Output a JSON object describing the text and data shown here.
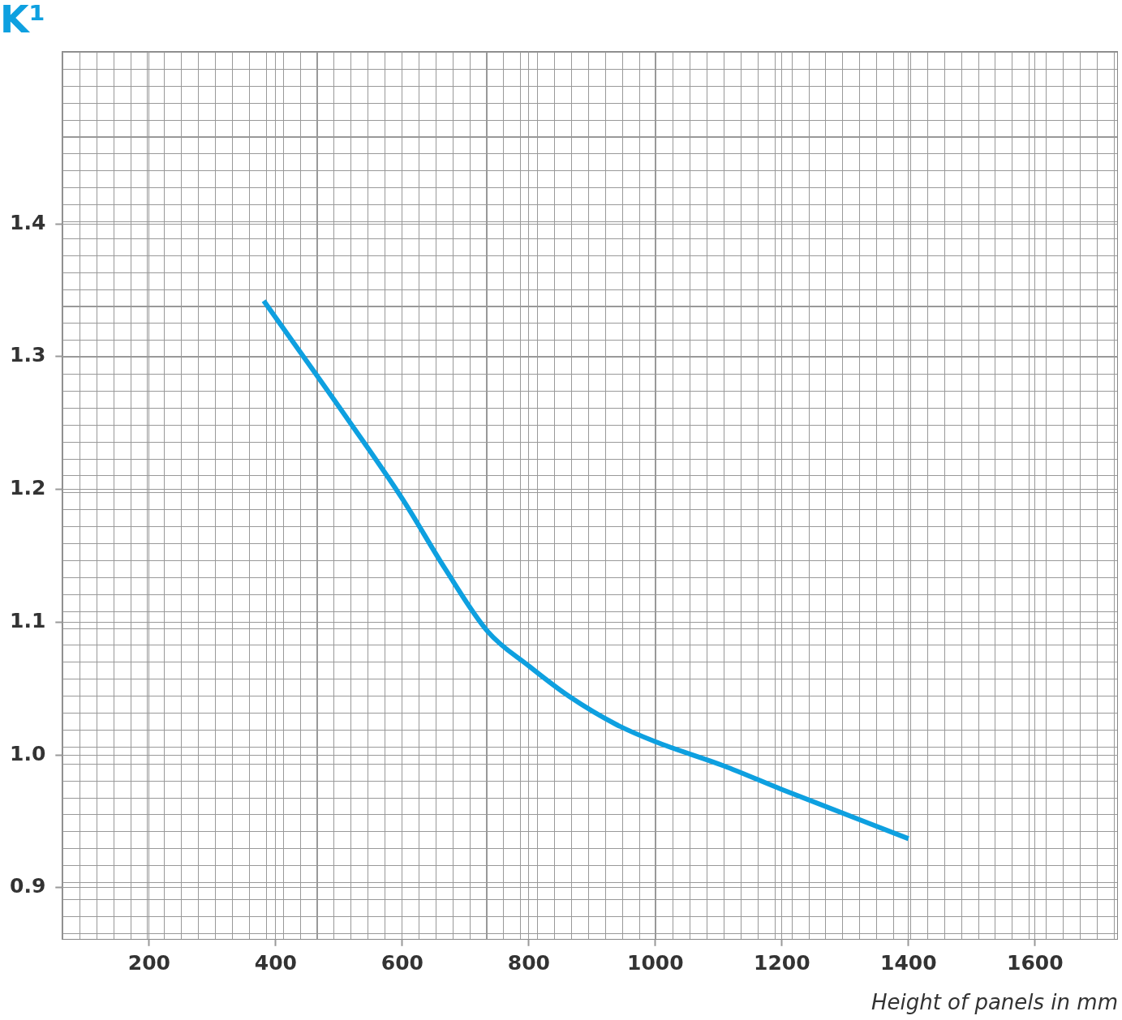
{
  "chart_data": {
    "type": "line",
    "title": "K¹",
    "xlabel": "Height of panels in mm",
    "x": [
      381,
      515,
      600,
      668,
      735,
      800,
      864,
      938,
      1000,
      1107,
      1200,
      1400
    ],
    "series": [
      {
        "color": "#0ea0e0",
        "values": [
          1.342,
          1.252,
          1.193,
          1.14,
          1.093,
          1.067,
          1.044,
          1.023,
          1.01,
          0.992,
          0.974,
          0.937
        ]
      }
    ],
    "xlim": [
      62,
      1731
    ],
    "xticks": [
      200,
      400,
      600,
      800,
      1000,
      1200,
      1400,
      1600
    ],
    "ylim": [
      0.861,
      1.53
    ],
    "yticks": [
      0.9,
      {
        "value": 1.0,
        "label": "1.0"
      },
      1.1,
      1.2,
      1.3,
      1.4
    ],
    "grid": true,
    "legend": false,
    "marker": "none",
    "line_style": "solid"
  }
}
